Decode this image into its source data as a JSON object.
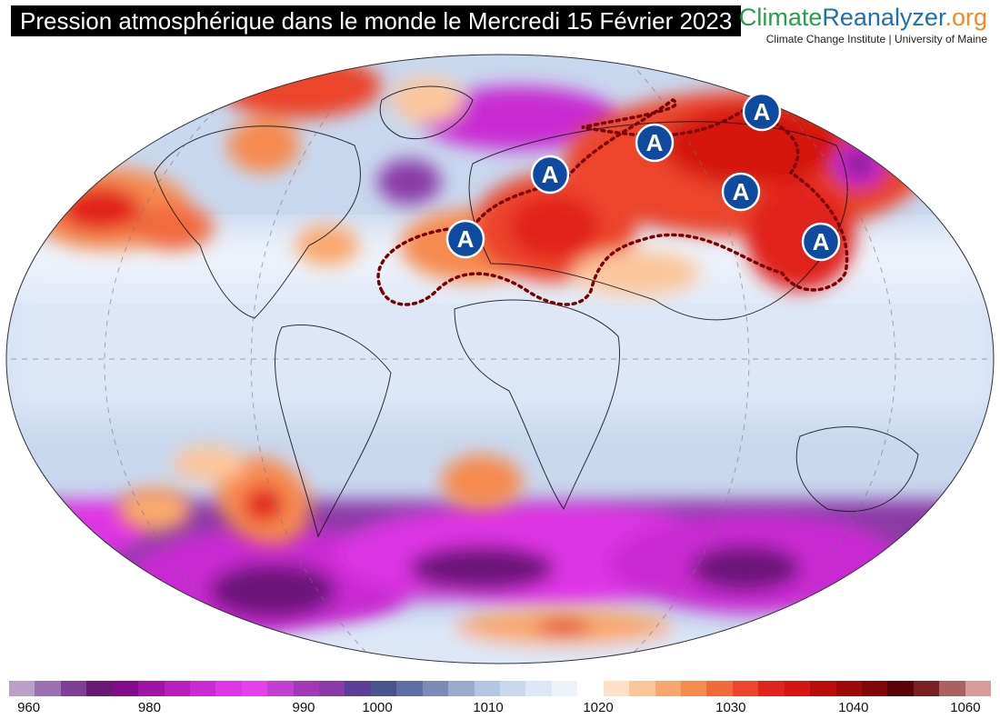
{
  "header": {
    "title": "Pression atmosphérique dans le monde le Mercredi 15 Février 2023"
  },
  "logo": {
    "part1": "Climate",
    "part2": "Reanalyzer",
    "part3": ".org",
    "subtitle": "Climate Change Institute | University of Maine",
    "colors": {
      "part1": "#2a9d4a",
      "part2": "#1f6fb3",
      "part3": "#f08a24"
    }
  },
  "map": {
    "projection": "Winkel-Tripel world",
    "high_pressure_label": "A",
    "high_pressure_centers": [
      {
        "name": "high-iberia-atlantic",
        "lon": -10,
        "lat": 37
      },
      {
        "name": "high-central-europe",
        "lon": 15,
        "lat": 50
      },
      {
        "name": "high-western-siberia",
        "lon": 65,
        "lat": 58
      },
      {
        "name": "high-eastern-siberia",
        "lon": 120,
        "lat": 65
      },
      {
        "name": "high-mongolia",
        "lon": 100,
        "lat": 47
      },
      {
        "name": "high-china",
        "lon": 117,
        "lat": 34
      }
    ],
    "marker_color": "#0d4aa0"
  },
  "colorbar": {
    "colors": [
      "#b9a0c9",
      "#9c6fb2",
      "#7f3f98",
      "#6a1777",
      "#840c8a",
      "#9f14a6",
      "#b51fbd",
      "#c82bd2",
      "#de36e4",
      "#e441ec",
      "#c33fd2",
      "#a437b6",
      "#8a3aa6",
      "#5b3e98",
      "#4a548c",
      "#5d6fa3",
      "#7a8bb8",
      "#9aaccd",
      "#b3c6e3",
      "#c9d8ef",
      "#dde7f6",
      "#eef3fb",
      "#ffffff",
      "#fde0c5",
      "#fcc69b",
      "#f9a86d",
      "#f68b4f",
      "#f26a3c",
      "#ec4529",
      "#e1241b",
      "#d4160f",
      "#b90d0d",
      "#9c0a0a",
      "#7e0808",
      "#5a0505",
      "#7a2020",
      "#ad6060",
      "#d99a9a"
    ],
    "ticks": [
      "960",
      "980",
      "990",
      "1000",
      "1010",
      "1020",
      "1030",
      "1040",
      "1060"
    ]
  }
}
